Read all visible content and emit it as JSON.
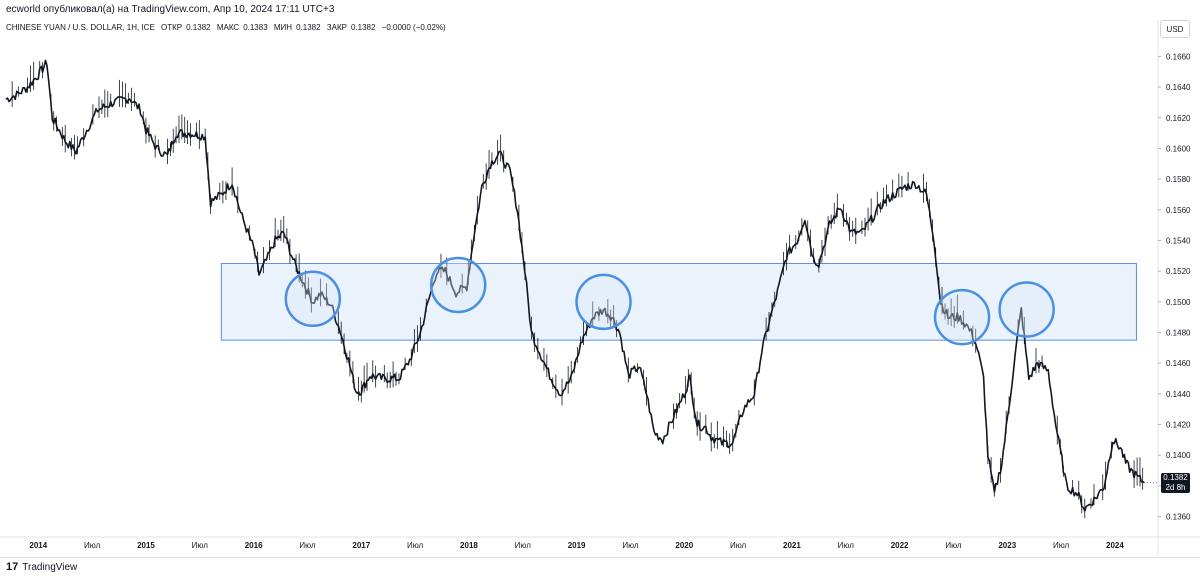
{
  "header": {
    "published_by": "ecworld опубликовал(а) на TradingView.com, Апр 10, 2024 17:11 UTC+3"
  },
  "legend": {
    "symbol": "CHINESE YUAN / U.S. DOLLAR, 1H, ICE",
    "open_label": "ОТКР",
    "open_value": "0.1382",
    "high_label": "МАКС",
    "high_value": "0.1383",
    "low_label": "МИН",
    "low_value": "0.1382",
    "close_label": "ЗАКР",
    "close_value": "0.1382",
    "change": "−0.0000 (−0.02%)"
  },
  "price_axis": {
    "currency_button": "USD",
    "last_price": "0.1382",
    "countdown": "2d 8h"
  },
  "footer": {
    "logo_mark": "17",
    "logo_text": "TradingView"
  },
  "colors": {
    "candle": "#131722",
    "zone_fill": "#e3eefb",
    "zone_stroke": "#5b8fe3",
    "circle_stroke": "#4a90e2",
    "circle_fill": "#dce9f8"
  },
  "chart_data": {
    "type": "line",
    "title": "CHINESE YUAN / U.S. DOLLAR, 1H, ICE",
    "x_tick_labels": [
      "2014",
      "Июл",
      "2015",
      "Июл",
      "2016",
      "Июл",
      "2017",
      "Июл",
      "2018",
      "Июл",
      "2019",
      "Июл",
      "2020",
      "Июл",
      "2021",
      "Июл",
      "2022",
      "Июл",
      "2023",
      "Июл",
      "2024"
    ],
    "x_ticks": [
      2014.0,
      2014.5,
      2015.0,
      2015.5,
      2016.0,
      2016.5,
      2017.0,
      2017.5,
      2018.0,
      2018.5,
      2019.0,
      2019.5,
      2020.0,
      2020.5,
      2021.0,
      2021.5,
      2022.0,
      2022.5,
      2023.0,
      2023.5,
      2024.0
    ],
    "y_tick_labels": [
      "0.1660",
      "0.1640",
      "0.1620",
      "0.1600",
      "0.1580",
      "0.1560",
      "0.1540",
      "0.1520",
      "0.1500",
      "0.1480",
      "0.1460",
      "0.1440",
      "0.1420",
      "0.1400",
      "0.1380",
      "0.1360"
    ],
    "ylim": [
      0.1348,
      0.1672
    ],
    "xlim": [
      2013.7,
      2024.4
    ],
    "zone": {
      "x_start": 2015.7,
      "x_end": 2024.2,
      "y_low": 0.1475,
      "y_high": 0.1525
    },
    "circles": [
      {
        "x": 2016.55,
        "y": 0.1502
      },
      {
        "x": 2017.9,
        "y": 0.1511
      },
      {
        "x": 2019.25,
        "y": 0.15
      },
      {
        "x": 2022.58,
        "y": 0.149
      },
      {
        "x": 2023.18,
        "y": 0.1495
      }
    ],
    "series": [
      {
        "values": [
          [
            2013.7,
            0.1632
          ],
          [
            2013.8,
            0.1635
          ],
          [
            2013.9,
            0.164
          ],
          [
            2014.0,
            0.1648
          ],
          [
            2014.08,
            0.1656
          ],
          [
            2014.13,
            0.162
          ],
          [
            2014.25,
            0.1605
          ],
          [
            2014.35,
            0.1598
          ],
          [
            2014.45,
            0.1612
          ],
          [
            2014.55,
            0.1625
          ],
          [
            2014.7,
            0.163
          ],
          [
            2014.85,
            0.1633
          ],
          [
            2014.95,
            0.1625
          ],
          [
            2015.0,
            0.1612
          ],
          [
            2015.1,
            0.16
          ],
          [
            2015.2,
            0.1595
          ],
          [
            2015.28,
            0.161
          ],
          [
            2015.4,
            0.161
          ],
          [
            2015.55,
            0.1608
          ],
          [
            2015.6,
            0.1565
          ],
          [
            2015.7,
            0.157
          ],
          [
            2015.8,
            0.1578
          ],
          [
            2015.88,
            0.1558
          ],
          [
            2016.0,
            0.1535
          ],
          [
            2016.05,
            0.1518
          ],
          [
            2016.12,
            0.1527
          ],
          [
            2016.2,
            0.154
          ],
          [
            2016.28,
            0.1545
          ],
          [
            2016.38,
            0.1525
          ],
          [
            2016.48,
            0.151
          ],
          [
            2016.55,
            0.15
          ],
          [
            2016.62,
            0.1505
          ],
          [
            2016.72,
            0.1498
          ],
          [
            2016.8,
            0.1482
          ],
          [
            2016.88,
            0.1462
          ],
          [
            2016.95,
            0.1442
          ],
          [
            2017.0,
            0.1442
          ],
          [
            2017.08,
            0.1452
          ],
          [
            2017.2,
            0.145
          ],
          [
            2017.35,
            0.145
          ],
          [
            2017.45,
            0.1462
          ],
          [
            2017.55,
            0.148
          ],
          [
            2017.63,
            0.1502
          ],
          [
            2017.7,
            0.152
          ],
          [
            2017.78,
            0.152
          ],
          [
            2017.88,
            0.1506
          ],
          [
            2017.98,
            0.151
          ],
          [
            2018.05,
            0.1545
          ],
          [
            2018.12,
            0.1575
          ],
          [
            2018.2,
            0.159
          ],
          [
            2018.28,
            0.1597
          ],
          [
            2018.38,
            0.1585
          ],
          [
            2018.45,
            0.156
          ],
          [
            2018.52,
            0.152
          ],
          [
            2018.58,
            0.148
          ],
          [
            2018.67,
            0.1465
          ],
          [
            2018.75,
            0.1452
          ],
          [
            2018.85,
            0.144
          ],
          [
            2018.95,
            0.145
          ],
          [
            2019.05,
            0.1475
          ],
          [
            2019.15,
            0.149
          ],
          [
            2019.25,
            0.1495
          ],
          [
            2019.33,
            0.149
          ],
          [
            2019.4,
            0.148
          ],
          [
            2019.48,
            0.1452
          ],
          [
            2019.58,
            0.1458
          ],
          [
            2019.65,
            0.144
          ],
          [
            2019.72,
            0.1415
          ],
          [
            2019.8,
            0.141
          ],
          [
            2019.9,
            0.1425
          ],
          [
            2020.0,
            0.144
          ],
          [
            2020.05,
            0.145
          ],
          [
            2020.12,
            0.142
          ],
          [
            2020.2,
            0.1418
          ],
          [
            2020.25,
            0.1412
          ],
          [
            2020.35,
            0.1408
          ],
          [
            2020.45,
            0.1408
          ],
          [
            2020.55,
            0.143
          ],
          [
            2020.65,
            0.144
          ],
          [
            2020.72,
            0.1468
          ],
          [
            2020.8,
            0.149
          ],
          [
            2020.88,
            0.151
          ],
          [
            2020.95,
            0.153
          ],
          [
            2021.05,
            0.154
          ],
          [
            2021.12,
            0.1555
          ],
          [
            2021.2,
            0.1528
          ],
          [
            2021.25,
            0.1525
          ],
          [
            2021.35,
            0.155
          ],
          [
            2021.45,
            0.1562
          ],
          [
            2021.55,
            0.1545
          ],
          [
            2021.65,
            0.1545
          ],
          [
            2021.75,
            0.1555
          ],
          [
            2021.85,
            0.1565
          ],
          [
            2021.95,
            0.157
          ],
          [
            2022.05,
            0.1575
          ],
          [
            2022.15,
            0.1577
          ],
          [
            2022.25,
            0.157
          ],
          [
            2022.32,
            0.154
          ],
          [
            2022.38,
            0.15
          ],
          [
            2022.45,
            0.149
          ],
          [
            2022.55,
            0.149
          ],
          [
            2022.62,
            0.1485
          ],
          [
            2022.68,
            0.1478
          ],
          [
            2022.72,
            0.147
          ],
          [
            2022.78,
            0.145
          ],
          [
            2022.82,
            0.14
          ],
          [
            2022.88,
            0.1375
          ],
          [
            2022.95,
            0.1395
          ],
          [
            2023.03,
            0.144
          ],
          [
            2023.1,
            0.148
          ],
          [
            2023.13,
            0.1495
          ],
          [
            2023.2,
            0.145
          ],
          [
            2023.28,
            0.146
          ],
          [
            2023.38,
            0.1455
          ],
          [
            2023.45,
            0.142
          ],
          [
            2023.55,
            0.138
          ],
          [
            2023.65,
            0.1375
          ],
          [
            2023.72,
            0.1365
          ],
          [
            2023.82,
            0.1372
          ],
          [
            2023.9,
            0.138
          ],
          [
            2023.98,
            0.141
          ],
          [
            2024.05,
            0.1405
          ],
          [
            2024.1,
            0.1395
          ],
          [
            2024.15,
            0.139
          ],
          [
            2024.22,
            0.1385
          ],
          [
            2024.27,
            0.1382
          ]
        ]
      }
    ]
  }
}
